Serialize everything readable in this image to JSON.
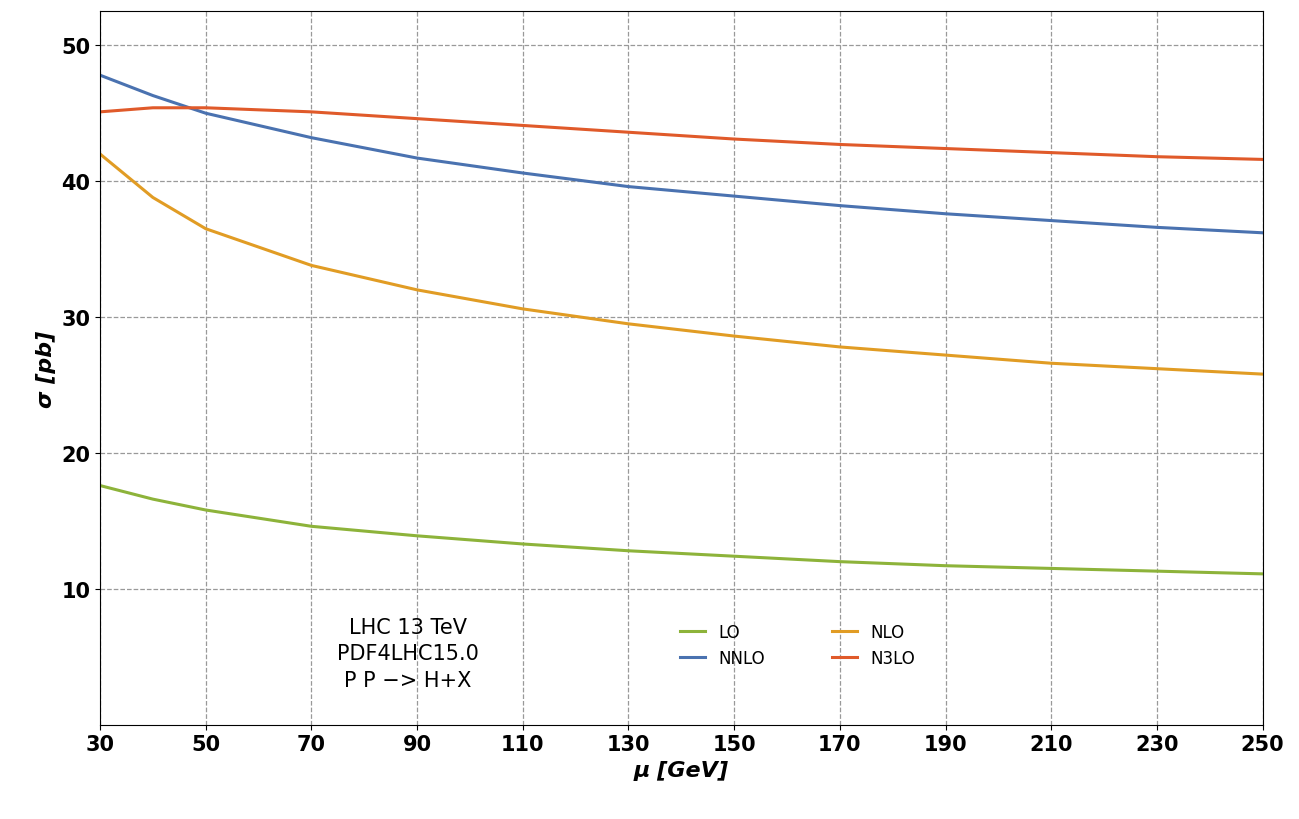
{
  "chart_data": {
    "type": "line",
    "x_label": "μ [GeV]",
    "y_label": "σ [pb]",
    "annotations": [
      "LHC 13 TeV\nPDF4LHC15.0\nP P −> H+X"
    ],
    "x": [
      30,
      40,
      50,
      70,
      90,
      110,
      130,
      150,
      170,
      190,
      210,
      230,
      250
    ],
    "series": [
      {
        "name": "LO",
        "color": "#8db33a",
        "values": [
          17.6,
          16.6,
          15.8,
          14.6,
          13.9,
          13.3,
          12.8,
          12.4,
          12.0,
          11.7,
          11.5,
          11.3,
          11.1
        ]
      },
      {
        "name": "NLO",
        "color": "#e19c24",
        "values": [
          42.0,
          38.8,
          36.5,
          33.8,
          32.0,
          30.6,
          29.5,
          28.6,
          27.8,
          27.2,
          26.6,
          26.2,
          25.8
        ]
      },
      {
        "name": "NNLO",
        "color": "#4a72b0",
        "values": [
          47.8,
          46.3,
          45.0,
          43.2,
          41.7,
          40.6,
          39.6,
          38.9,
          38.2,
          37.6,
          37.1,
          36.6,
          36.2
        ]
      },
      {
        "name": "N3LO",
        "color": "#e05a2a",
        "values": [
          45.1,
          45.4,
          45.4,
          45.1,
          44.6,
          44.1,
          43.6,
          43.1,
          42.7,
          42.4,
          42.1,
          41.8,
          41.6
        ]
      }
    ],
    "xlim": [
      30,
      250
    ],
    "xticks": [
      30,
      50,
      70,
      90,
      110,
      130,
      150,
      170,
      190,
      210,
      230,
      250
    ],
    "ylim": [
      0,
      52.5
    ],
    "yticks": [
      10,
      20,
      30,
      40,
      50
    ],
    "grid": true,
    "legend": "lower center"
  }
}
